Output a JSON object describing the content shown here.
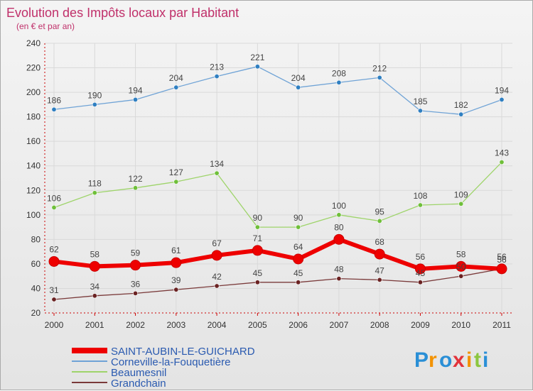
{
  "header": {
    "title": "Evolution des Impôts locaux par Habitant",
    "subtitle": "(en € et par an)"
  },
  "brand": {
    "letters": [
      "P",
      "r",
      "o",
      "x",
      "i",
      "t",
      "i"
    ]
  },
  "colors": {
    "title": "#c0306a",
    "axis": "#cc0000",
    "grid": "#d9d9d9",
    "legend_text": "#2a5ab0",
    "brand": [
      "#2a8fd6",
      "#f39200",
      "#2a8fd6",
      "#e2333b",
      "#f39200",
      "#8cc63f",
      "#2a8fd6"
    ]
  },
  "chart_data": {
    "type": "line",
    "title": "Evolution des Impôts locaux par Habitant",
    "subtitle": "(en € et par an)",
    "xlabel": "",
    "ylabel": "",
    "categories": [
      "2000",
      "2001",
      "2002",
      "2003",
      "2004",
      "2005",
      "2006",
      "2007",
      "2008",
      "2009",
      "2010",
      "2011"
    ],
    "ylim": [
      20,
      240
    ],
    "yticks": [
      20,
      40,
      60,
      80,
      100,
      120,
      140,
      160,
      180,
      200,
      220,
      240
    ],
    "grid": true,
    "legend_position": "bottom-left",
    "series": [
      {
        "name": "SAINT-AUBIN-LE-GUICHARD",
        "color": "#ee0000",
        "marker_color": "#cc0000",
        "width": 6,
        "emphasis": true,
        "values": [
          62,
          58,
          59,
          61,
          67,
          71,
          64,
          80,
          68,
          56,
          58,
          56
        ],
        "labels": [
          "62",
          "58",
          "59",
          "61",
          "67",
          "71",
          "64",
          "80",
          "68",
          "56",
          "58",
          "56"
        ]
      },
      {
        "name": "Corneville-la-Fouquetière",
        "color": "#6fa3d6",
        "marker_color": "#2f7fc1",
        "width": 1.3,
        "values": [
          186,
          190,
          194,
          204,
          213,
          221,
          204,
          208,
          212,
          185,
          182,
          194
        ],
        "labels": [
          "186",
          "190",
          "194",
          "204",
          "213",
          "221",
          "204",
          "208",
          "212",
          "185",
          "182",
          "194"
        ]
      },
      {
        "name": "Beaumesnil",
        "color": "#9ed46a",
        "marker_color": "#6fbf3a",
        "width": 1.3,
        "values": [
          106,
          118,
          122,
          127,
          134,
          90,
          90,
          100,
          95,
          108,
          109,
          143
        ],
        "labels": [
          "106",
          "118",
          "122",
          "127",
          "134",
          "90",
          "90",
          "100",
          "95",
          "108",
          "109",
          "143"
        ]
      },
      {
        "name": "Grandchain",
        "color": "#7a3a3a",
        "marker_color": "#6a2222",
        "width": 1.3,
        "values": [
          31,
          34,
          36,
          39,
          42,
          45,
          45,
          48,
          47,
          45,
          50,
          56
        ],
        "labels": [
          "31",
          "34",
          "36",
          "39",
          "42",
          "45",
          "45",
          "48",
          "47",
          "45",
          "50",
          "56"
        ]
      }
    ]
  }
}
